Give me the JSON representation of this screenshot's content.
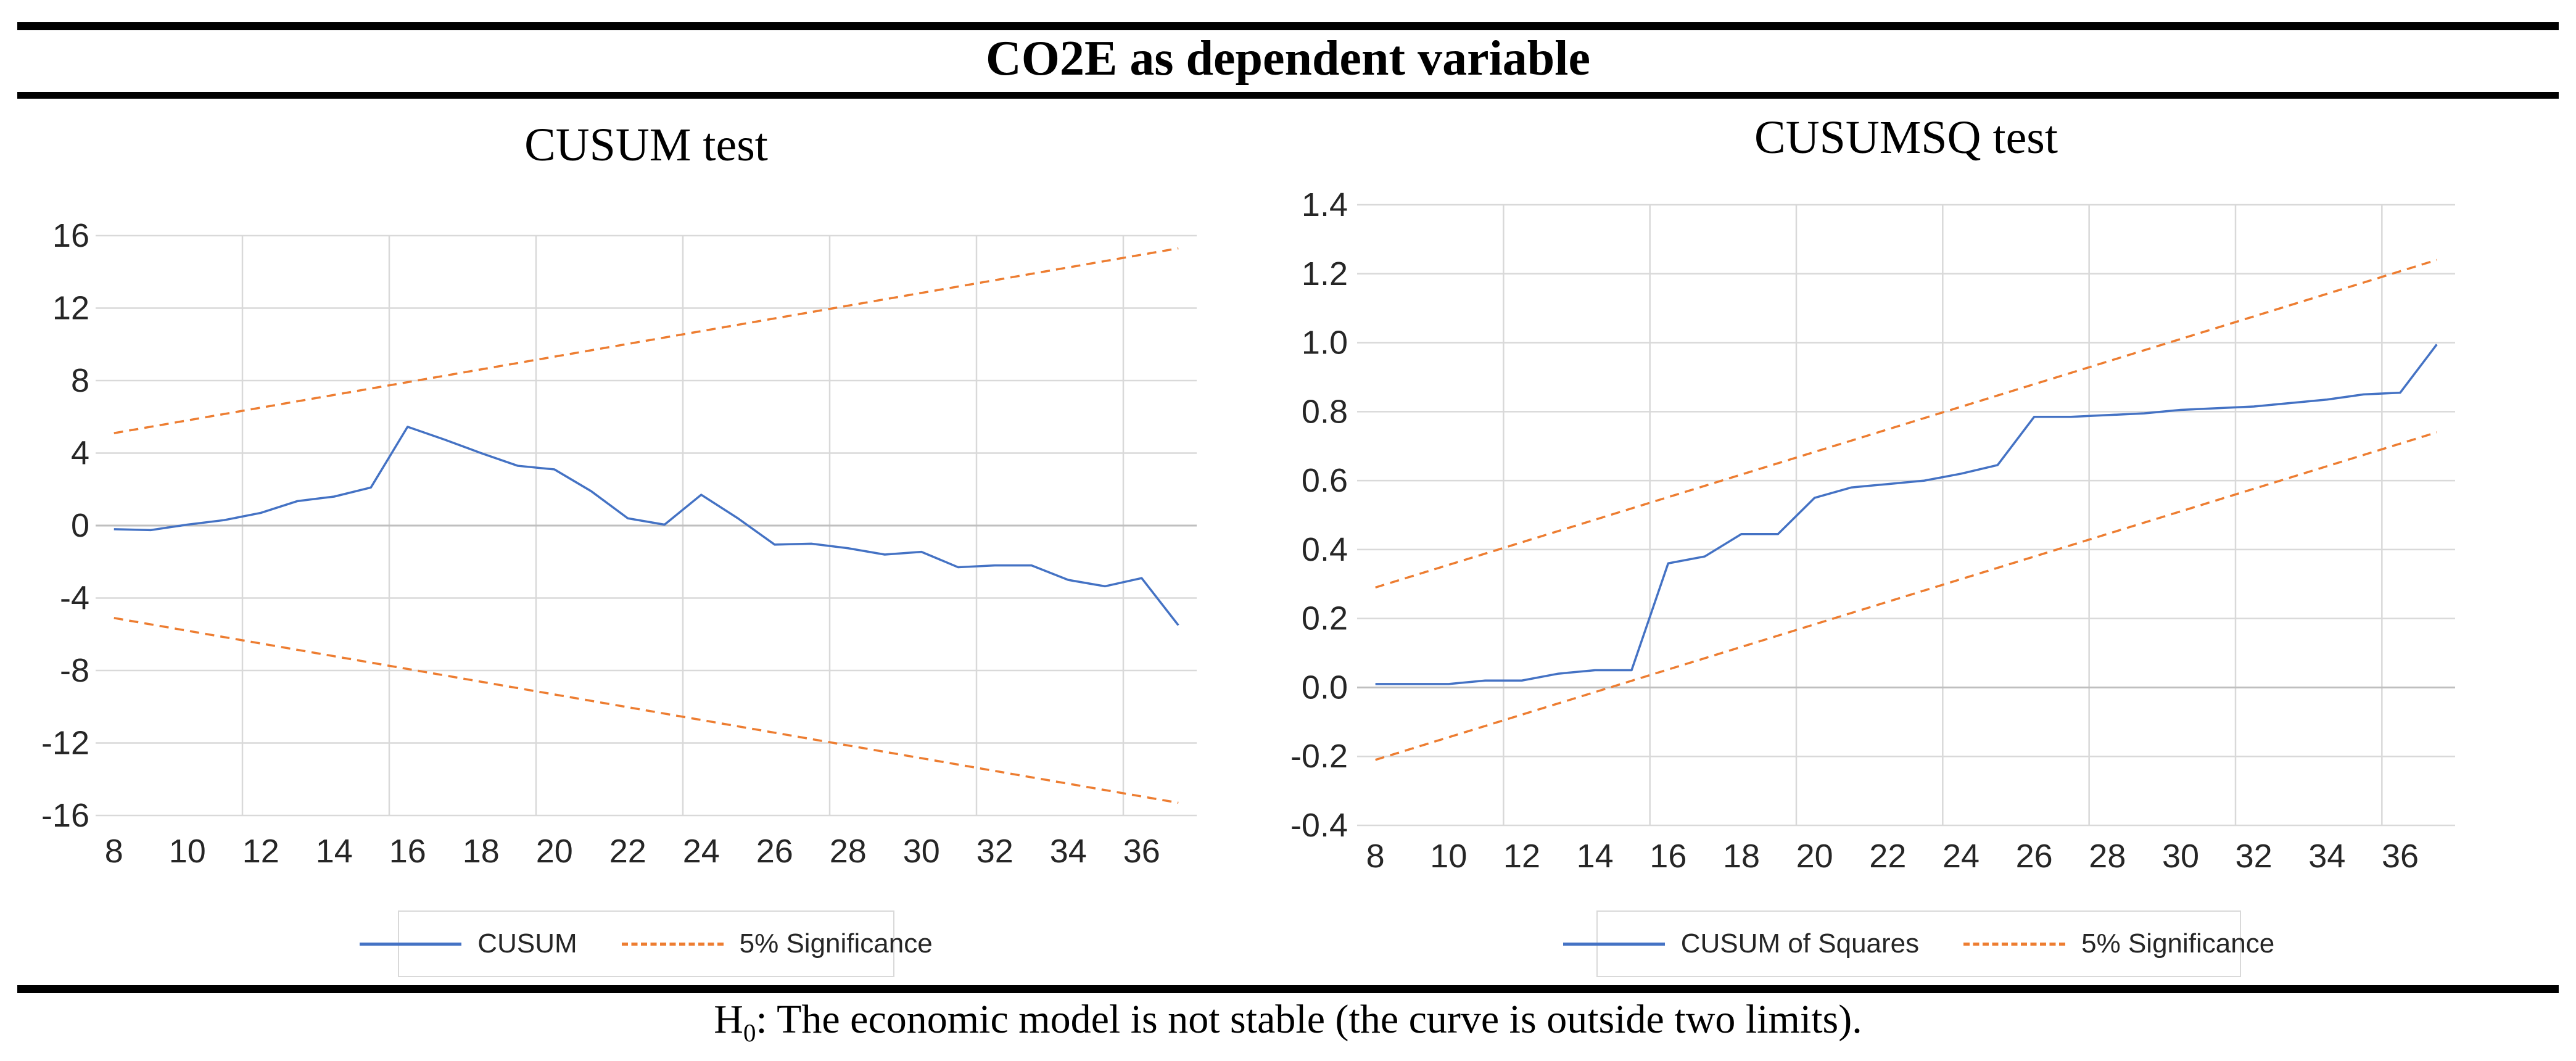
{
  "header": {
    "title": "CO2E as dependent variable"
  },
  "footnote": {
    "prefix": "H",
    "subscript": "0",
    "text": ": The economic model is not stable (the curve is outside two limits)."
  },
  "colors": {
    "series_blue": "#4472C4",
    "significance_orange": "#ED7D31",
    "gridline": "#D9D9D9",
    "zero_line": "#BFBFBF",
    "tick_label": "#262626",
    "legend_border": "#D9D9D9"
  },
  "chart_data": [
    {
      "type": "line",
      "title": "CUSUM test",
      "xlabel": "",
      "ylabel": "",
      "x": [
        8,
        9,
        10,
        11,
        12,
        13,
        14,
        15,
        16,
        17,
        18,
        19,
        20,
        21,
        22,
        23,
        24,
        25,
        26,
        27,
        28,
        29,
        30,
        31,
        32,
        33,
        34,
        35,
        36,
        37
      ],
      "series": [
        {
          "name": "CUSUM",
          "style": "solid",
          "color": "#4472C4",
          "values": [
            -0.2,
            -0.25,
            0.05,
            0.3,
            0.7,
            1.35,
            1.6,
            2.1,
            5.45,
            4.75,
            4.0,
            3.3,
            3.1,
            1.9,
            0.4,
            0.05,
            1.7,
            0.4,
            -1.05,
            -1.0,
            -1.25,
            -1.6,
            -1.45,
            -2.3,
            -2.2,
            -2.2,
            -3.0,
            -3.35,
            -2.9,
            -5.5
          ]
        },
        {
          "name": "5% Significance (upper)",
          "style": "dashed",
          "color": "#ED7D31",
          "x": [
            8,
            37
          ],
          "values": [
            5.1,
            15.3
          ]
        },
        {
          "name": "5% Significance (lower)",
          "style": "dashed",
          "color": "#ED7D31",
          "x": [
            8,
            37
          ],
          "values": [
            -5.1,
            -15.3
          ]
        }
      ],
      "ylim": [
        -16,
        16
      ],
      "y_ticks": [
        16,
        12,
        8,
        4,
        0,
        -4,
        -8,
        -12,
        -16
      ],
      "y_tick_labels": [
        "16",
        "12",
        "8",
        "4",
        "0",
        "-4",
        "-8",
        "-12",
        "-16"
      ],
      "x_tick_labels": [
        8,
        10,
        12,
        14,
        16,
        18,
        20,
        22,
        24,
        26,
        28,
        30,
        32,
        34,
        36
      ],
      "x_gridlines": [
        11.5,
        15.5,
        19.5,
        23.5,
        27.5,
        31.5,
        35.5
      ],
      "grid": true,
      "legend": {
        "position": "bottom",
        "items": [
          {
            "label": "CUSUM",
            "swatch": "solid"
          },
          {
            "label": "5% Significance",
            "swatch": "dashed"
          }
        ]
      }
    },
    {
      "type": "line",
      "title": "CUSUMSQ test",
      "xlabel": "",
      "ylabel": "",
      "x": [
        8,
        9,
        10,
        11,
        12,
        13,
        14,
        15,
        16,
        17,
        18,
        19,
        20,
        21,
        22,
        23,
        24,
        25,
        26,
        27,
        28,
        29,
        30,
        31,
        32,
        33,
        34,
        35,
        36,
        37
      ],
      "series": [
        {
          "name": "CUSUM of Squares",
          "style": "solid",
          "color": "#4472C4",
          "values": [
            0.01,
            0.01,
            0.01,
            0.02,
            0.02,
            0.04,
            0.05,
            0.05,
            0.36,
            0.38,
            0.445,
            0.445,
            0.55,
            0.58,
            0.59,
            0.6,
            0.62,
            0.645,
            0.785,
            0.785,
            0.79,
            0.795,
            0.805,
            0.81,
            0.815,
            0.825,
            0.835,
            0.85,
            0.855,
            0.995
          ]
        },
        {
          "name": "5% Significance (upper)",
          "style": "dashed",
          "color": "#ED7D31",
          "x": [
            8,
            37
          ],
          "values": [
            0.29,
            1.24
          ]
        },
        {
          "name": "5% Significance (lower)",
          "style": "dashed",
          "color": "#ED7D31",
          "x": [
            8,
            37
          ],
          "values": [
            -0.21,
            0.74
          ]
        }
      ],
      "ylim": [
        -0.4,
        1.4
      ],
      "y_ticks": [
        1.4,
        1.2,
        1.0,
        0.8,
        0.6,
        0.4,
        0.2,
        0.0,
        -0.2,
        -0.4
      ],
      "y_tick_labels": [
        "1.4",
        "1.2",
        "1.0",
        "0.8",
        "0.6",
        "0.4",
        "0.2",
        "0.0",
        "-0.2",
        "-0.4"
      ],
      "x_tick_labels": [
        8,
        10,
        12,
        14,
        16,
        18,
        20,
        22,
        24,
        26,
        28,
        30,
        32,
        34,
        36
      ],
      "x_gridlines": [
        11.5,
        15.5,
        19.5,
        23.5,
        27.5,
        31.5,
        35.5
      ],
      "grid": true,
      "legend": {
        "position": "bottom",
        "items": [
          {
            "label": "CUSUM of Squares",
            "swatch": "solid"
          },
          {
            "label": "5% Significance",
            "swatch": "dashed"
          }
        ]
      }
    }
  ]
}
